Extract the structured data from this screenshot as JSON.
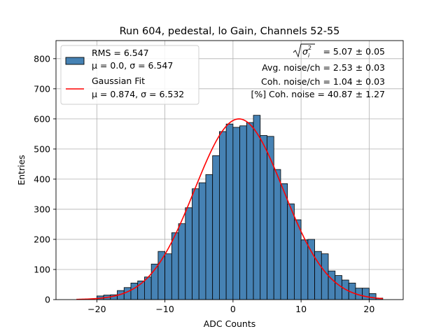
{
  "colors": {
    "bar_fill": "#4682b4",
    "bar_edge": "#000000",
    "fit_line": "#ff0000",
    "grid": "#b0b0b0"
  },
  "chart_data": {
    "type": "bar",
    "title": "Run 604, pedestal, lo Gain, Channels 52-55",
    "xlabel": "ADC Counts",
    "ylabel": "Entries",
    "xlim": [
      -26,
      25
    ],
    "ylim": [
      0,
      860
    ],
    "xticks": [
      -20,
      -10,
      0,
      10,
      20
    ],
    "yticks": [
      0,
      100,
      200,
      300,
      400,
      500,
      600,
      700,
      800
    ],
    "grid": true,
    "legend_position": "top-left",
    "bin_width": 1.0,
    "bins_x_start": -20,
    "values": [
      12,
      15,
      16,
      30,
      40,
      55,
      62,
      75,
      118,
      160,
      152,
      222,
      252,
      305,
      368,
      388,
      415,
      478,
      558,
      583,
      572,
      577,
      588,
      612,
      545,
      542,
      432,
      385,
      318,
      265,
      198,
      200,
      160,
      152,
      95,
      80,
      65,
      55,
      38,
      38,
      20,
      5
    ],
    "fit": {
      "amplitude": 600,
      "mean": 0.874,
      "sigma": 6.532,
      "range": [
        -23,
        22
      ]
    },
    "legend": [
      {
        "type": "patch",
        "lines": [
          "RMS = 6.547",
          "μ = 0.0, σ = 6.547"
        ]
      },
      {
        "type": "line",
        "lines": [
          "Gaussian Fit",
          "μ = 0.874, σ = 6.532"
        ]
      }
    ],
    "annotations": {
      "sigma_value": " = 5.07 ± 0.05",
      "avg_noise": "Avg. noise/ch = 2.53 ± 0.03",
      "coh_noise": "Coh. noise/ch = 1.04 ± 0.03",
      "coh_noise_pct": "[%] Coh. noise = 40.87 ± 1.27"
    }
  }
}
